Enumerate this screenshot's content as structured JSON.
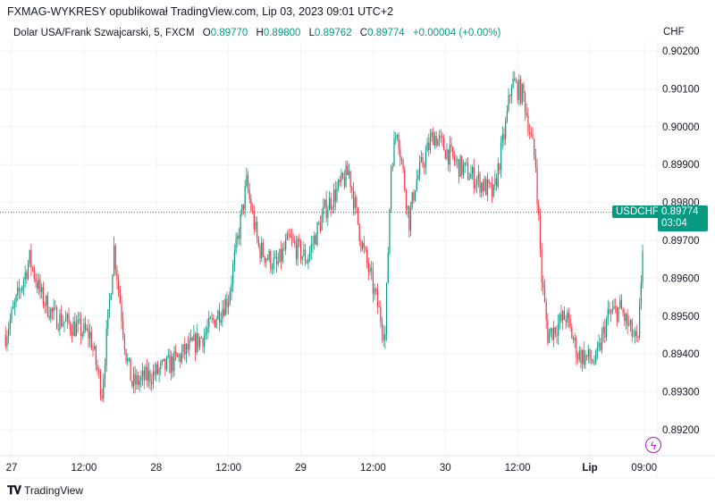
{
  "header": {
    "publisher": "FXMAG-WYKRESY opublikował TradingView.com, Lip 03, 2023 09:01 UTC+2"
  },
  "legend": {
    "symbol_desc": "Dolar USA/Frank Szwajcarski, 5, FXCM",
    "o_label": "O",
    "open": "0.89770",
    "h_label": "H",
    "high": "0.89800",
    "l_label": "L",
    "low": "0.89762",
    "c_label": "C",
    "close": "0.89774",
    "change": "+0.00004 (+0.00%)"
  },
  "currency": "CHF",
  "last_price": {
    "symbol": "USDCHF",
    "price": "0.89774",
    "countdown": "03:04",
    "value": 0.89774
  },
  "footer": {
    "brand": "TradingView",
    "logo_text": "TV"
  },
  "colors": {
    "up": "#089981",
    "down": "#f23645",
    "grid": "#f0f3fa",
    "text": "#131722",
    "alert": "#9c27b0"
  },
  "icons": {
    "alert": "lightning-icon",
    "logo": "tradingview-logo"
  },
  "chart_data": {
    "type": "candlestick",
    "interval": "5",
    "ylim": [
      0.8915,
      0.9025
    ],
    "y_ticks": [
      "0.90200",
      "0.90100",
      "0.90000",
      "0.89900",
      "0.89800",
      "0.89700",
      "0.89600",
      "0.89500",
      "0.89400",
      "0.89300",
      "0.89200"
    ],
    "x_ticks": [
      {
        "label": "27",
        "time": "06-27 00:00"
      },
      {
        "label": "12:00",
        "time": "06-27 12:00"
      },
      {
        "label": "28",
        "time": "06-28 00:00"
      },
      {
        "label": "12:00",
        "time": "06-28 12:00"
      },
      {
        "label": "29",
        "time": "06-29 00:00"
      },
      {
        "label": "12:00",
        "time": "06-29 12:00"
      },
      {
        "label": "30",
        "time": "06-30 00:00"
      },
      {
        "label": "12:00",
        "time": "06-30 12:00"
      },
      {
        "label": "Lip",
        "time": "07-03 00:00",
        "bold": true
      },
      {
        "label": "09:00",
        "time": "07-03 09:00"
      }
    ],
    "grid": true,
    "approx_price_path": [
      [
        "06-26 23:00",
        0.8945
      ],
      [
        "06-27 03:00",
        0.8965
      ],
      [
        "06-27 05:00",
        0.8955
      ],
      [
        "06-27 07:00",
        0.895
      ],
      [
        "06-27 13:00",
        0.8945
      ],
      [
        "06-27 15:00",
        0.893
      ],
      [
        "06-27 17:00",
        0.8968
      ],
      [
        "06-27 19:00",
        0.894
      ],
      [
        "06-27 20:00",
        0.8932
      ],
      [
        "06-28 00:00",
        0.8935
      ],
      [
        "06-28 03:00",
        0.8938
      ],
      [
        "06-28 08:00",
        0.8945
      ],
      [
        "06-28 12:00",
        0.8955
      ],
      [
        "06-28 15:00",
        0.8985
      ],
      [
        "06-28 17:00",
        0.8968
      ],
      [
        "06-28 20:00",
        0.8963
      ],
      [
        "06-28 22:00",
        0.897
      ],
      [
        "06-29 01:00",
        0.8965
      ],
      [
        "06-29 04:00",
        0.8978
      ],
      [
        "06-29 08:00",
        0.8988
      ],
      [
        "06-29 10:00",
        0.897
      ],
      [
        "06-29 14:00",
        0.8945
      ],
      [
        "06-29 15:00",
        0.899
      ],
      [
        "06-29 16:00",
        0.9
      ],
      [
        "06-29 18:00",
        0.8975
      ],
      [
        "06-29 19:00",
        0.8985
      ],
      [
        "06-29 22:00",
        0.8998
      ],
      [
        "06-30 02:00",
        0.899
      ],
      [
        "06-30 06:00",
        0.8985
      ],
      [
        "06-30 08:00",
        0.8982
      ],
      [
        "06-30 10:00",
        0.9
      ],
      [
        "06-30 11:00",
        0.9012
      ],
      [
        "06-30 13:00",
        0.9008
      ],
      [
        "06-30 15:00",
        0.899
      ],
      [
        "06-30 16:00",
        0.896
      ],
      [
        "06-30 17:00",
        0.8945
      ],
      [
        "06-30 20:00",
        0.895
      ],
      [
        "06-30 22:00",
        0.894
      ],
      [
        "07-03 01:00",
        0.8938
      ],
      [
        "07-03 03:00",
        0.895
      ],
      [
        "07-03 05:00",
        0.8952
      ],
      [
        "07-03 08:00",
        0.8942
      ],
      [
        "07-03 09:00",
        0.89774
      ]
    ]
  }
}
